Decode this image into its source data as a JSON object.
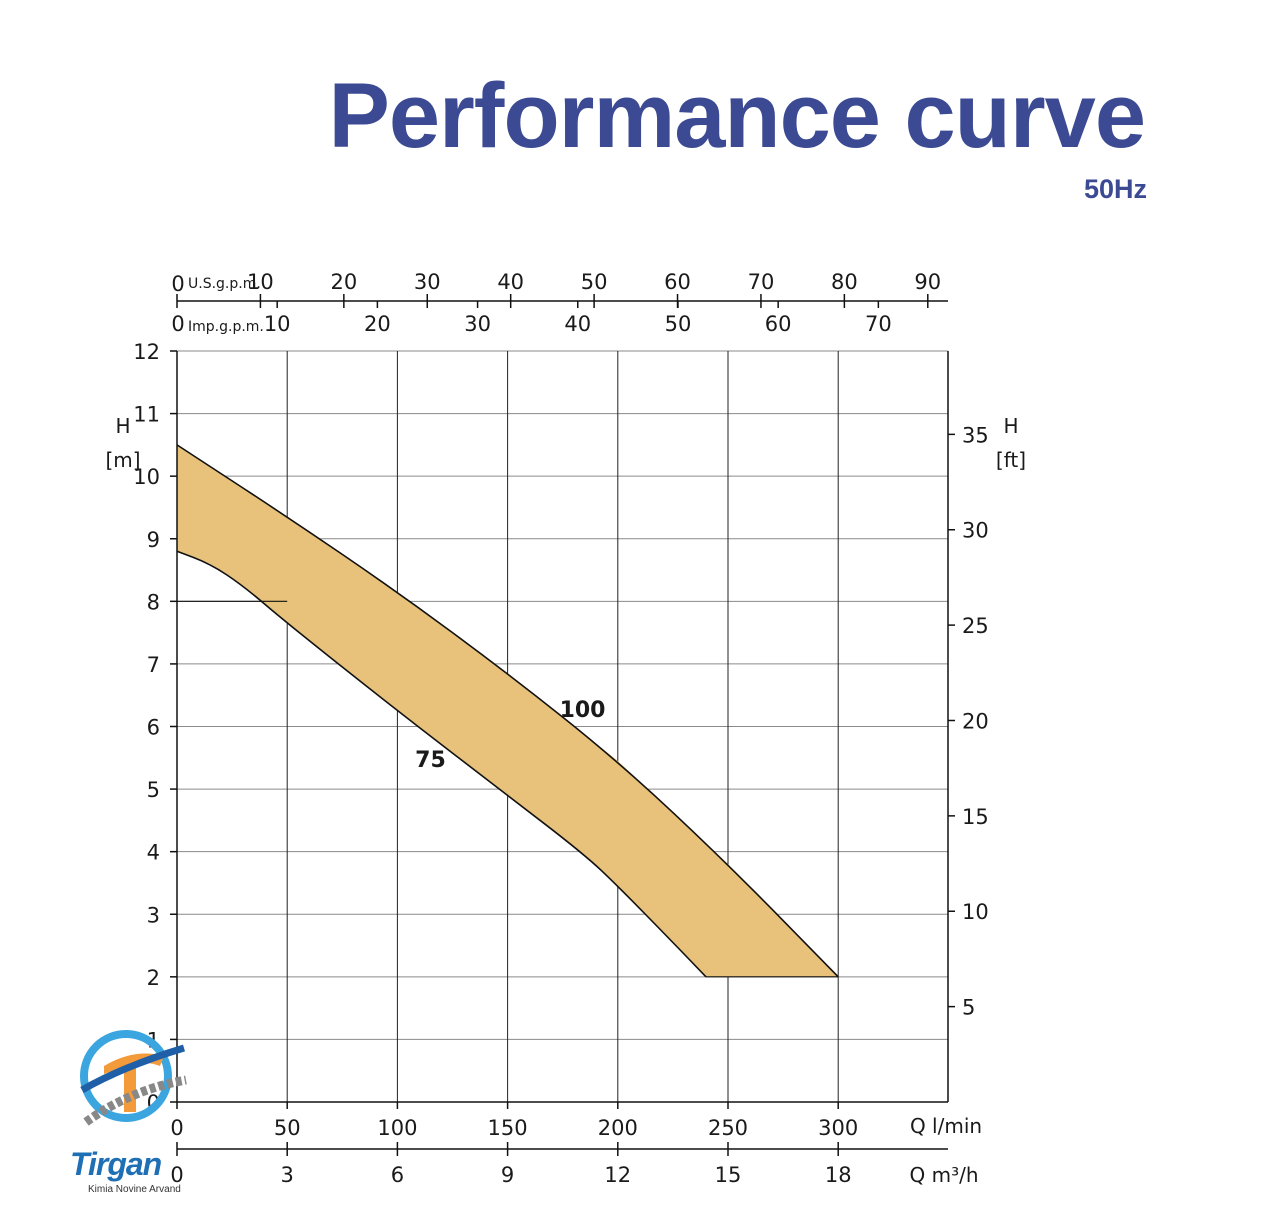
{
  "header": {
    "title": "Performance curve",
    "frequency": "50Hz"
  },
  "logo": {
    "name": "Tirgan",
    "subtitle": "Kimia Novine Arvand"
  },
  "chart_data": {
    "type": "line",
    "x_unit_label": "Q l/min",
    "x2_unit_label": "Q m³/h",
    "y_label": "H",
    "y_unit": "[m]",
    "y2_label": "H",
    "y2_unit": "[ft]",
    "xlim": [
      0,
      350
    ],
    "ylim": [
      0,
      12
    ],
    "x_ticks": [
      0,
      50,
      100,
      150,
      200,
      250,
      300
    ],
    "x_m3h_ticks": [
      {
        "value": 0,
        "label": "0"
      },
      {
        "value": 3,
        "label": "3"
      },
      {
        "value": 6,
        "label": "6"
      },
      {
        "value": 9,
        "label": "9"
      },
      {
        "value": 12,
        "label": "12"
      },
      {
        "value": 15,
        "label": "15"
      },
      {
        "value": 18,
        "label": "18"
      }
    ],
    "y_ticks": [
      0,
      1,
      2,
      3,
      4,
      5,
      6,
      7,
      8,
      9,
      10,
      11,
      12
    ],
    "y_ft_ticks": [
      5,
      10,
      15,
      20,
      25,
      30,
      35
    ],
    "top_usgpm_label": "U.S.g.p.m.",
    "top_usgpm_zero": "0",
    "top_usgpm_ticks": [
      10,
      20,
      30,
      40,
      50,
      60,
      70,
      80,
      90
    ],
    "top_impgpm_label": "Imp.g.p.m.",
    "top_impgpm_zero": "0",
    "top_impgpm_ticks": [
      10,
      20,
      30,
      40,
      50,
      60,
      70
    ],
    "series": [
      {
        "name": "100",
        "x": [
          0,
          50,
          100,
          150,
          200,
          250,
          300
        ],
        "y": [
          10.5,
          9.35,
          8.15,
          6.85,
          5.45,
          3.8,
          2.0
        ]
      },
      {
        "name": "75",
        "x": [
          0,
          15,
          30,
          50,
          100,
          150,
          185,
          200,
          225,
          240
        ],
        "y": [
          8.8,
          8.6,
          8.25,
          7.65,
          6.25,
          4.9,
          3.95,
          3.45,
          2.55,
          2.0
        ]
      }
    ],
    "annotations": [
      {
        "text": "",
        "x_from": 0,
        "x_to": 50,
        "y": 8
      }
    ],
    "colors": {
      "fill": "#e8c27a",
      "line": "#111111",
      "grid": "#8a8a8a",
      "title": "#3b4a93"
    }
  }
}
